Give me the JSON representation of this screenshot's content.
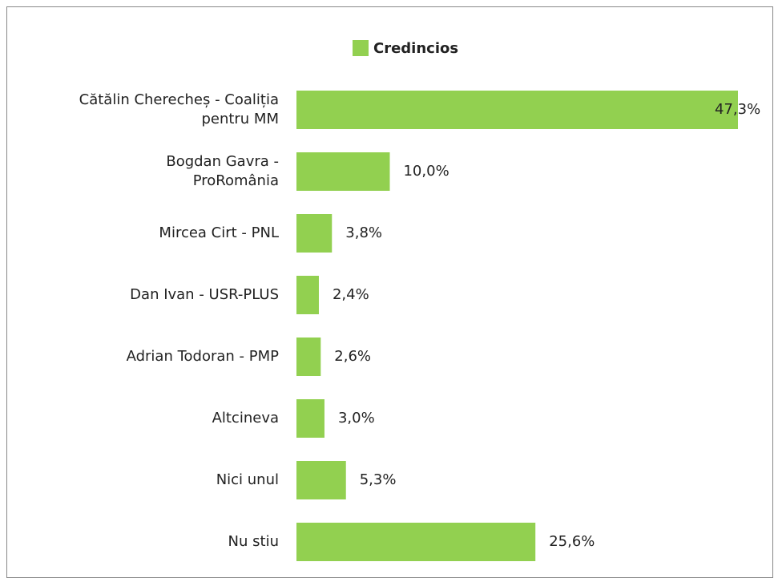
{
  "chart_data": {
    "type": "hbar",
    "categories": [
      "Cătălin Cherecheș - Coaliția\npentru MM",
      "Bogdan Gavra -\nProRomânia",
      "Mircea Cirt - PNL",
      "Dan Ivan - USR-PLUS",
      "Adrian Todoran - PMP",
      "Altcineva",
      "Nici unul",
      "Nu stiu"
    ],
    "series": [
      {
        "name": "Credincios",
        "color": "#92d050",
        "values": [
          47.3,
          10.0,
          3.8,
          2.4,
          2.6,
          3.0,
          5.3,
          25.6
        ],
        "value_labels": [
          "47,3%",
          "10,0%",
          "3,8%",
          "2,4%",
          "2,6%",
          "3,0%",
          "5,3%",
          "25,6%"
        ]
      }
    ],
    "legend": "top"
  }
}
